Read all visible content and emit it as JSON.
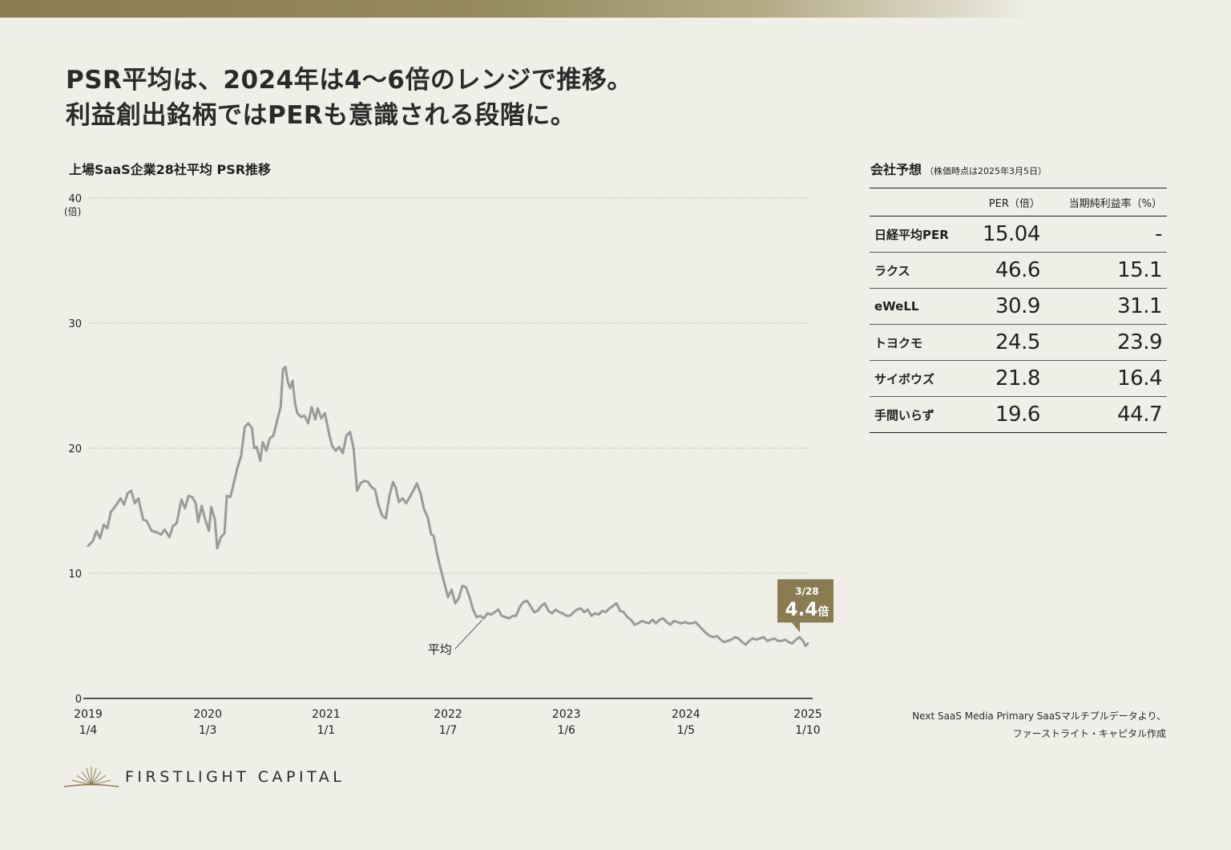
{
  "headline": {
    "line1": "PSR平均は、2024年は4〜6倍のレンジで推移。",
    "line2": "利益創出銘柄ではPERも意識される段階に。"
  },
  "colors": {
    "accent": "#8a7c52",
    "line": "#9a9a9a",
    "background": "#efefe7",
    "text": "#1f1f1f"
  },
  "chart_data": {
    "type": "line",
    "title": "上場SaaS企業28社平均 PSR推移",
    "xlabel": "",
    "ylabel": "(倍)",
    "ylim": [
      0,
      40
    ],
    "yticks": [
      "0",
      "10",
      "20",
      "30",
      "40"
    ],
    "grid": true,
    "x_ticks": [
      {
        "year": "2019",
        "date": "1/4",
        "t": 2019.01
      },
      {
        "year": "2020",
        "date": "1/3",
        "t": 2020.01
      },
      {
        "year": "2021",
        "date": "1/1",
        "t": 2021.0
      },
      {
        "year": "2022",
        "date": "1/7",
        "t": 2022.02
      },
      {
        "year": "2023",
        "date": "1/6",
        "t": 2023.01
      },
      {
        "year": "2024",
        "date": "1/5",
        "t": 2024.01
      },
      {
        "year": "2025",
        "date": "1/10",
        "t": 2025.03
      }
    ],
    "xlim": [
      2019.01,
      2025.03
    ],
    "series": [
      {
        "name": "平均",
        "points": [
          [
            2019.01,
            12.2
          ],
          [
            2019.05,
            12.6
          ],
          [
            2019.08,
            13.4
          ],
          [
            2019.11,
            12.8
          ],
          [
            2019.14,
            13.9
          ],
          [
            2019.17,
            13.6
          ],
          [
            2019.2,
            14.9
          ],
          [
            2019.24,
            15.4
          ],
          [
            2019.28,
            16.0
          ],
          [
            2019.31,
            15.5
          ],
          [
            2019.34,
            16.4
          ],
          [
            2019.37,
            16.6
          ],
          [
            2019.4,
            15.6
          ],
          [
            2019.43,
            16.0
          ],
          [
            2019.47,
            14.3
          ],
          [
            2019.5,
            14.2
          ],
          [
            2019.54,
            13.4
          ],
          [
            2019.58,
            13.3
          ],
          [
            2019.62,
            13.1
          ],
          [
            2019.65,
            13.5
          ],
          [
            2019.69,
            12.9
          ],
          [
            2019.72,
            13.8
          ],
          [
            2019.75,
            14.0
          ],
          [
            2019.79,
            15.9
          ],
          [
            2019.82,
            15.2
          ],
          [
            2019.85,
            16.2
          ],
          [
            2019.88,
            16.1
          ],
          [
            2019.91,
            15.6
          ],
          [
            2019.93,
            14.1
          ],
          [
            2019.96,
            15.4
          ],
          [
            2019.98,
            14.6
          ],
          [
            2020.02,
            13.4
          ],
          [
            2020.04,
            15.3
          ],
          [
            2020.07,
            14.3
          ],
          [
            2020.09,
            12.0
          ],
          [
            2020.12,
            12.9
          ],
          [
            2020.15,
            13.2
          ],
          [
            2020.17,
            16.2
          ],
          [
            2020.2,
            16.1
          ],
          [
            2020.23,
            17.3
          ],
          [
            2020.26,
            18.5
          ],
          [
            2020.29,
            19.4
          ],
          [
            2020.32,
            21.7
          ],
          [
            2020.35,
            22.0
          ],
          [
            2020.38,
            21.6
          ],
          [
            2020.4,
            20.0
          ],
          [
            2020.42,
            20.1
          ],
          [
            2020.45,
            19.0
          ],
          [
            2020.47,
            20.5
          ],
          [
            2020.5,
            19.8
          ],
          [
            2020.53,
            20.8
          ],
          [
            2020.56,
            21.0
          ],
          [
            2020.59,
            22.2
          ],
          [
            2020.62,
            23.3
          ],
          [
            2020.64,
            26.3
          ],
          [
            2020.66,
            26.5
          ],
          [
            2020.68,
            25.3
          ],
          [
            2020.7,
            24.8
          ],
          [
            2020.72,
            25.4
          ],
          [
            2020.74,
            23.6
          ],
          [
            2020.76,
            22.8
          ],
          [
            2020.79,
            22.5
          ],
          [
            2020.82,
            22.6
          ],
          [
            2020.85,
            22.0
          ],
          [
            2020.88,
            23.3
          ],
          [
            2020.91,
            22.3
          ],
          [
            2020.93,
            23.2
          ],
          [
            2020.96,
            22.4
          ],
          [
            2020.99,
            22.8
          ],
          [
            2021.02,
            21.4
          ],
          [
            2021.05,
            20.2
          ],
          [
            2021.08,
            19.8
          ],
          [
            2021.11,
            20.1
          ],
          [
            2021.14,
            19.6
          ],
          [
            2021.17,
            21.0
          ],
          [
            2021.2,
            21.3
          ],
          [
            2021.23,
            20.0
          ],
          [
            2021.26,
            16.6
          ],
          [
            2021.29,
            17.2
          ],
          [
            2021.32,
            17.4
          ],
          [
            2021.35,
            17.3
          ],
          [
            2021.38,
            16.9
          ],
          [
            2021.41,
            16.7
          ],
          [
            2021.44,
            15.4
          ],
          [
            2021.47,
            14.6
          ],
          [
            2021.5,
            14.4
          ],
          [
            2021.53,
            16.2
          ],
          [
            2021.56,
            17.3
          ],
          [
            2021.58,
            16.9
          ],
          [
            2021.61,
            15.7
          ],
          [
            2021.64,
            16.0
          ],
          [
            2021.67,
            15.6
          ],
          [
            2021.7,
            16.1
          ],
          [
            2021.73,
            16.6
          ],
          [
            2021.76,
            17.2
          ],
          [
            2021.79,
            16.4
          ],
          [
            2021.82,
            15.1
          ],
          [
            2021.85,
            14.5
          ],
          [
            2021.88,
            13.1
          ],
          [
            2021.9,
            13.0
          ],
          [
            2021.93,
            11.5
          ],
          [
            2021.96,
            10.3
          ],
          [
            2021.99,
            9.2
          ],
          [
            2022.02,
            8.1
          ],
          [
            2022.05,
            8.7
          ],
          [
            2022.08,
            7.6
          ],
          [
            2022.11,
            8.0
          ],
          [
            2022.14,
            9.0
          ],
          [
            2022.17,
            8.9
          ],
          [
            2022.2,
            8.1
          ],
          [
            2022.23,
            7.1
          ],
          [
            2022.26,
            6.5
          ],
          [
            2022.29,
            6.6
          ],
          [
            2022.32,
            6.4
          ],
          [
            2022.35,
            6.8
          ],
          [
            2022.38,
            6.7
          ],
          [
            2022.41,
            6.9
          ],
          [
            2022.44,
            7.1
          ],
          [
            2022.47,
            6.6
          ],
          [
            2022.5,
            6.5
          ],
          [
            2022.53,
            6.4
          ],
          [
            2022.56,
            6.6
          ],
          [
            2022.59,
            6.6
          ],
          [
            2022.62,
            7.3
          ],
          [
            2022.65,
            7.7
          ],
          [
            2022.68,
            7.8
          ],
          [
            2022.71,
            7.4
          ],
          [
            2022.74,
            6.9
          ],
          [
            2022.77,
            7.0
          ],
          [
            2022.8,
            7.4
          ],
          [
            2022.83,
            7.6
          ],
          [
            2022.86,
            7.0
          ],
          [
            2022.89,
            6.8
          ],
          [
            2022.92,
            7.1
          ],
          [
            2022.95,
            6.9
          ],
          [
            2022.98,
            6.8
          ],
          [
            2023.01,
            6.6
          ],
          [
            2023.04,
            6.6
          ],
          [
            2023.07,
            6.9
          ],
          [
            2023.1,
            7.1
          ],
          [
            2023.13,
            7.2
          ],
          [
            2023.16,
            6.9
          ],
          [
            2023.19,
            7.1
          ],
          [
            2023.22,
            6.6
          ],
          [
            2023.25,
            6.8
          ],
          [
            2023.28,
            6.7
          ],
          [
            2023.31,
            7.0
          ],
          [
            2023.34,
            6.9
          ],
          [
            2023.37,
            7.2
          ],
          [
            2023.4,
            7.4
          ],
          [
            2023.43,
            7.6
          ],
          [
            2023.46,
            7.0
          ],
          [
            2023.49,
            6.9
          ],
          [
            2023.52,
            6.5
          ],
          [
            2023.55,
            6.3
          ],
          [
            2023.58,
            5.9
          ],
          [
            2023.61,
            6.0
          ],
          [
            2023.64,
            6.2
          ],
          [
            2023.67,
            6.1
          ],
          [
            2023.7,
            6.0
          ],
          [
            2023.73,
            6.3
          ],
          [
            2023.76,
            6.0
          ],
          [
            2023.79,
            6.3
          ],
          [
            2023.82,
            6.4
          ],
          [
            2023.85,
            6.1
          ],
          [
            2023.88,
            5.9
          ],
          [
            2023.91,
            6.2
          ],
          [
            2023.94,
            6.1
          ],
          [
            2023.97,
            6.0
          ],
          [
            2024.0,
            6.1
          ],
          [
            2024.03,
            6.0
          ],
          [
            2024.06,
            6.0
          ],
          [
            2024.09,
            6.1
          ],
          [
            2024.12,
            5.8
          ],
          [
            2024.15,
            5.5
          ],
          [
            2024.18,
            5.2
          ],
          [
            2024.21,
            5.0
          ],
          [
            2024.24,
            4.9
          ],
          [
            2024.27,
            5.0
          ],
          [
            2024.3,
            4.7
          ],
          [
            2024.33,
            4.5
          ],
          [
            2024.36,
            4.6
          ],
          [
            2024.39,
            4.7
          ],
          [
            2024.42,
            4.9
          ],
          [
            2024.45,
            4.8
          ],
          [
            2024.48,
            4.5
          ],
          [
            2024.51,
            4.3
          ],
          [
            2024.54,
            4.6
          ],
          [
            2024.57,
            4.8
          ],
          [
            2024.6,
            4.7
          ],
          [
            2024.63,
            4.8
          ],
          [
            2024.66,
            4.9
          ],
          [
            2024.69,
            4.6
          ],
          [
            2024.72,
            4.7
          ],
          [
            2024.75,
            4.8
          ],
          [
            2024.78,
            4.6
          ],
          [
            2024.81,
            4.6
          ],
          [
            2024.84,
            4.7
          ],
          [
            2024.87,
            4.5
          ],
          [
            2024.9,
            4.4
          ],
          [
            2024.93,
            4.7
          ],
          [
            2024.96,
            4.9
          ],
          [
            2024.99,
            4.6
          ],
          [
            2025.01,
            4.2
          ],
          [
            2025.03,
            4.4
          ]
        ]
      }
    ],
    "annotations": {
      "series_label": "平均",
      "callout_date": "3/28",
      "callout_value": "4.4",
      "callout_unit": "倍"
    }
  },
  "table": {
    "title": "会社予想",
    "note": "（株価時点は2025年3月5日）",
    "headers": [
      "",
      "PER（倍）",
      "当期純利益率（%）"
    ],
    "rows": [
      {
        "name": "日経平均PER",
        "per": "15.04",
        "margin": "-"
      },
      {
        "name": "ラクス",
        "per": "46.6",
        "margin": "15.1"
      },
      {
        "name": "eWeLL",
        "per": "30.9",
        "margin": "31.1"
      },
      {
        "name": "トヨクモ",
        "per": "24.5",
        "margin": "23.9"
      },
      {
        "name": "サイボウズ",
        "per": "21.8",
        "margin": "16.4"
      },
      {
        "name": "手間いらず",
        "per": "19.6",
        "margin": "44.7"
      }
    ]
  },
  "source": {
    "line1": "Next SaaS Media Primary SaaSマルチプルデータより、",
    "line2": "ファーストライト・キャピタル作成"
  },
  "logo": {
    "text": "FIRSTLIGHT CAPITAL",
    "icon": "sunrise-icon"
  }
}
